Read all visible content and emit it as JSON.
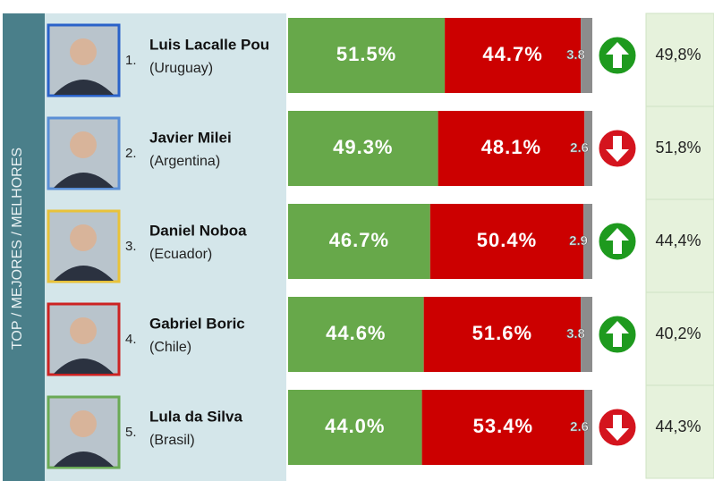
{
  "chart_data": {
    "type": "bar",
    "orientation": "horizontal",
    "stacked": true,
    "side_label": "TOP / MEJORES / MELHORES",
    "ranks": [
      "1.",
      "2.",
      "3.",
      "4.",
      "5."
    ],
    "categories": [
      "Luis Lacalle Pou",
      "Javier Milei",
      "Daniel Noboa",
      "Gabriel Boric",
      "Lula da Silva"
    ],
    "countries": [
      "(Uruguay)",
      "(Argentina)",
      "(Ecuador)",
      "(Chile)",
      "(Brasil)"
    ],
    "photo_colors": [
      "#2a62c9",
      "#5a8fd6",
      "#e8c23a",
      "#cc2222",
      "#6aaa55"
    ],
    "xlim": [
      0,
      100
    ],
    "series": [
      {
        "color": "#67a84a",
        "values": [
          51.5,
          49.3,
          46.7,
          44.6,
          44.0
        ],
        "value_labels": [
          "51.5%",
          "49.3%",
          "46.7%",
          "44.6%",
          "44.0%"
        ]
      },
      {
        "color": "#cc0000",
        "values": [
          44.7,
          48.1,
          50.4,
          51.6,
          53.4
        ],
        "value_labels": [
          "44.7%",
          "48.1%",
          "50.4%",
          "51.6%",
          "53.4%"
        ]
      },
      {
        "color": "#8c8c8c",
        "values": [
          3.8,
          2.6,
          2.9,
          3.8,
          2.6
        ]
      }
    ],
    "trend": [
      "up",
      "down",
      "up",
      "up",
      "down"
    ],
    "trend_colors": {
      "up": "#1e9a1e",
      "down": "#d4141e"
    },
    "previous": [
      "49,8%",
      "51,8%",
      "44,4%",
      "40,2%",
      "44,3%"
    ]
  }
}
